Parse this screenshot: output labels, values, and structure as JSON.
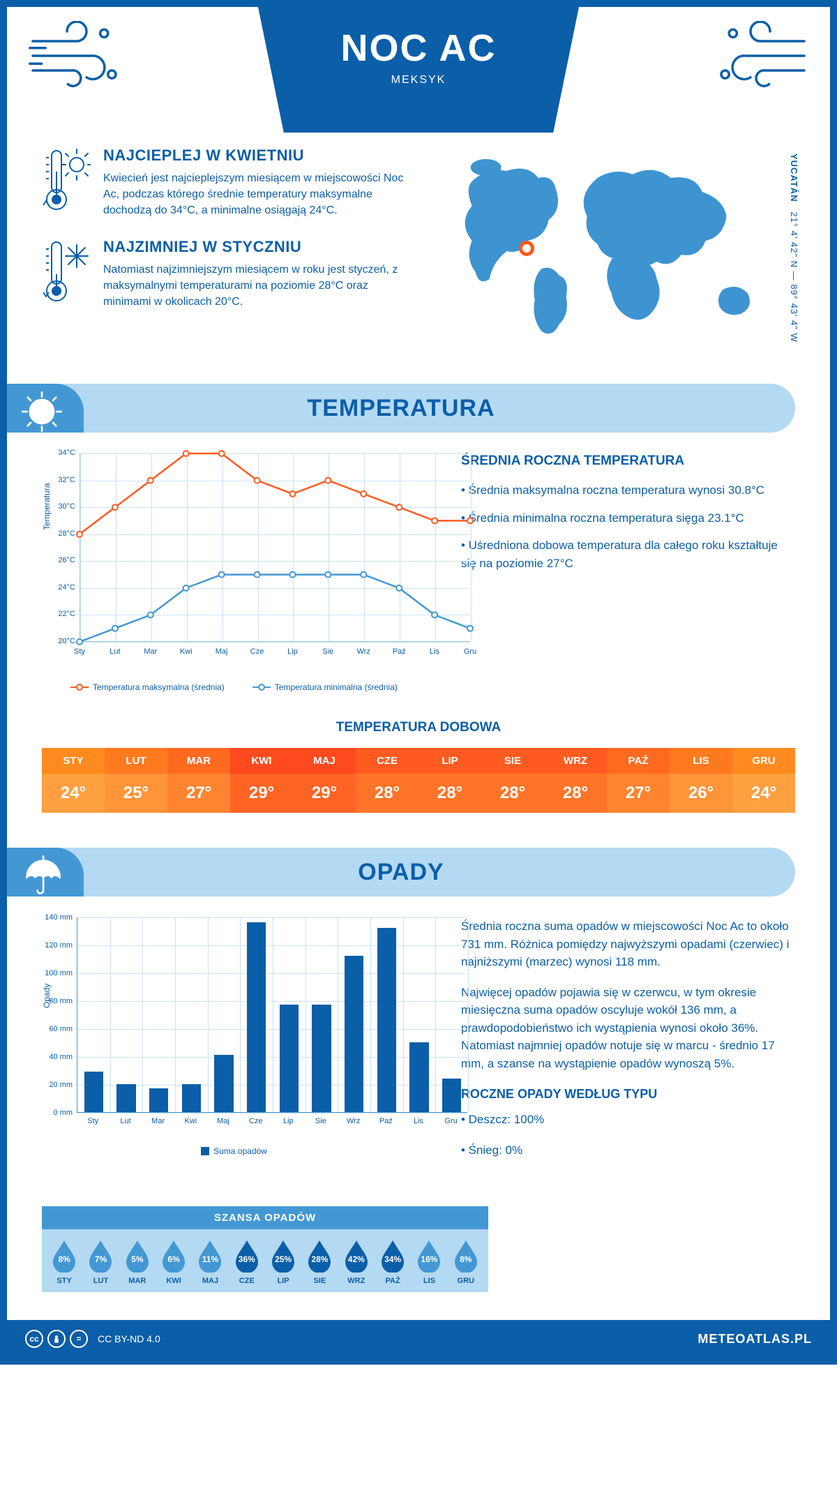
{
  "header": {
    "title": "NOC AC",
    "subtitle": "MEKSYK"
  },
  "coords": {
    "region": "YUCATÁN",
    "value": "21° 4' 42\" N — 89° 43' 4\" W"
  },
  "facts": {
    "hot": {
      "title": "NAJCIEPLEJ W KWIETNIU",
      "text": "Kwiecień jest najcieplejszym miesiącem w miejscowości Noc Ac, podczas którego średnie temperatury maksymalne dochodzą do 34°C, a minimalne osiągają 24°C."
    },
    "cold": {
      "title": "NAJZIMNIEJ W STYCZNIU",
      "text": "Natomiast najzimniejszym miesiącem w roku jest styczeń, z maksymalnymi temperaturami na poziomie 28°C oraz minimami w okolicach 20°C."
    }
  },
  "sections": {
    "temperature": "TEMPERATURA",
    "precip": "OPADY"
  },
  "months": [
    "Sty",
    "Lut",
    "Mar",
    "Kwi",
    "Maj",
    "Cze",
    "Lip",
    "Sie",
    "Wrz",
    "Paź",
    "Lis",
    "Gru"
  ],
  "months_upper": [
    "STY",
    "LUT",
    "MAR",
    "KWI",
    "MAJ",
    "CZE",
    "LIP",
    "SIE",
    "WRZ",
    "PAŹ",
    "LIS",
    "GRU"
  ],
  "temp_chart": {
    "y_label": "Temperatura",
    "y_min": 20,
    "y_max": 34,
    "y_step": 2,
    "y_ticks": [
      "20°C",
      "22°C",
      "24°C",
      "26°C",
      "28°C",
      "30°C",
      "32°C",
      "34°C"
    ],
    "max_series": [
      28,
      30,
      32,
      34,
      34,
      32,
      31,
      32,
      31,
      30,
      29,
      29
    ],
    "min_series": [
      20,
      21,
      22,
      24,
      25,
      25,
      25,
      25,
      25,
      24,
      22,
      21
    ],
    "max_color": "#ff5a1f",
    "min_color": "#4398d4",
    "grid_color": "#c9e2f2",
    "legend_max": "Temperatura maksymalna (średnia)",
    "legend_min": "Temperatura minimalna (średnia)"
  },
  "temp_desc": {
    "heading": "ŚREDNIA ROCZNA TEMPERATURA",
    "b1": "• Średnia maksymalna roczna temperatura wynosi 30.8°C",
    "b2": "• Średnia minimalna roczna temperatura sięga 23.1°C",
    "b3": "• Uśredniona dobowa temperatura dla całego roku kształtuje się na poziomie 27°C"
  },
  "daily": {
    "title": "TEMPERATURA DOBOWA",
    "values": [
      "24°",
      "25°",
      "27°",
      "29°",
      "29°",
      "28°",
      "28°",
      "28°",
      "28°",
      "27°",
      "26°",
      "24°"
    ],
    "head_colors": [
      "#ff8a1f",
      "#ff7a1f",
      "#ff6a1f",
      "#ff4a1f",
      "#ff4a1f",
      "#ff5a1f",
      "#ff5a1f",
      "#ff5a1f",
      "#ff5a1f",
      "#ff6a1f",
      "#ff7a1f",
      "#ff8a1f"
    ],
    "val_colors": [
      "#ffa040",
      "#ff9438",
      "#ff8430",
      "#ff6424",
      "#ff6424",
      "#ff7428",
      "#ff7428",
      "#ff7428",
      "#ff7428",
      "#ff8430",
      "#ff9438",
      "#ffa040"
    ]
  },
  "precip_chart": {
    "y_label": "Opady",
    "y_max": 140,
    "y_step": 20,
    "y_ticks": [
      "0 mm",
      "20 mm",
      "40 mm",
      "60 mm",
      "80 mm",
      "100 mm",
      "120 mm",
      "140 mm"
    ],
    "values": [
      29,
      20,
      17,
      20,
      41,
      136,
      77,
      77,
      112,
      132,
      50,
      24
    ],
    "bar_color": "#0b5ea8",
    "grid_color": "#c9e2f2",
    "legend": "Suma opadów"
  },
  "precip_desc": {
    "p1": "Średnia roczna suma opadów w miejscowości Noc Ac to około 731 mm. Różnica pomiędzy najwyższymi opadami (czerwiec) i najniższymi (marzec) wynosi 118 mm.",
    "p2": "Najwięcej opadów pojawia się w czerwcu, w tym okresie miesięczna suma opadów oscyluje wokół 136 mm, a prawdopodobieństwo ich wystąpienia wynosi około 36%. Natomiast najmniej opadów notuje się w marcu - średnio 17 mm, a szanse na wystąpienie opadów wynoszą 5%.",
    "type_heading": "ROCZNE OPADY WEDŁUG TYPU",
    "type_rain": "• Deszcz: 100%",
    "type_snow": "• Śnieg: 0%"
  },
  "chance": {
    "heading": "SZANSA OPADÓW",
    "values": [
      "8%",
      "7%",
      "5%",
      "6%",
      "11%",
      "36%",
      "25%",
      "28%",
      "42%",
      "34%",
      "16%",
      "8%"
    ],
    "dark": [
      "#0b5ea8",
      "#4398d4"
    ],
    "dark_months": [
      5,
      6,
      7,
      8,
      9
    ]
  },
  "footer": {
    "license": "CC BY-ND 4.0",
    "brand": "METEOATLAS.PL"
  }
}
